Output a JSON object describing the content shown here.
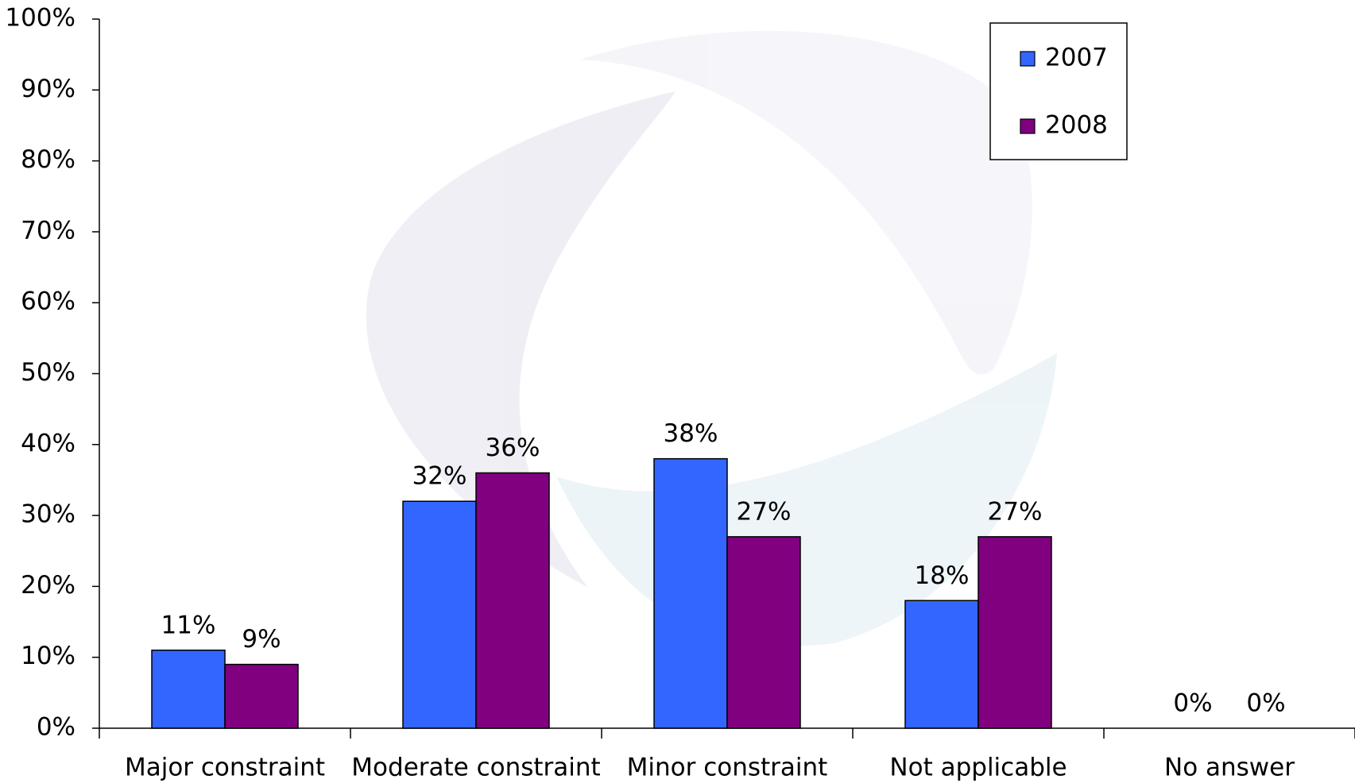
{
  "chart_data": {
    "type": "bar",
    "categories": [
      "Major constraint",
      "Moderate constraint",
      "Minor constraint",
      "Not applicable",
      "No answer"
    ],
    "series": [
      {
        "name": "2007",
        "color": "#3366ff",
        "values": [
          11,
          32,
          38,
          18,
          0
        ],
        "value_labels": [
          "11%",
          "32%",
          "38%",
          "18%",
          "0%"
        ]
      },
      {
        "name": "2008",
        "color": "#800080",
        "values": [
          9,
          36,
          27,
          27,
          0
        ],
        "value_labels": [
          "9%",
          "36%",
          "27%",
          "27%",
          "0%"
        ]
      }
    ],
    "ylim": [
      0,
      100
    ],
    "yticks": [
      {
        "value": 0,
        "label": "0%"
      },
      {
        "value": 10,
        "label": "10%"
      },
      {
        "value": 20,
        "label": "20%"
      },
      {
        "value": 30,
        "label": "30%"
      },
      {
        "value": 40,
        "label": "40%"
      },
      {
        "value": 50,
        "label": "50%"
      },
      {
        "value": 60,
        "label": "60%"
      },
      {
        "value": 70,
        "label": "70%"
      },
      {
        "value": 80,
        "label": "80%"
      },
      {
        "value": 90,
        "label": "90%"
      },
      {
        "value": 100,
        "label": "100%"
      }
    ],
    "legend": "upper right"
  }
}
